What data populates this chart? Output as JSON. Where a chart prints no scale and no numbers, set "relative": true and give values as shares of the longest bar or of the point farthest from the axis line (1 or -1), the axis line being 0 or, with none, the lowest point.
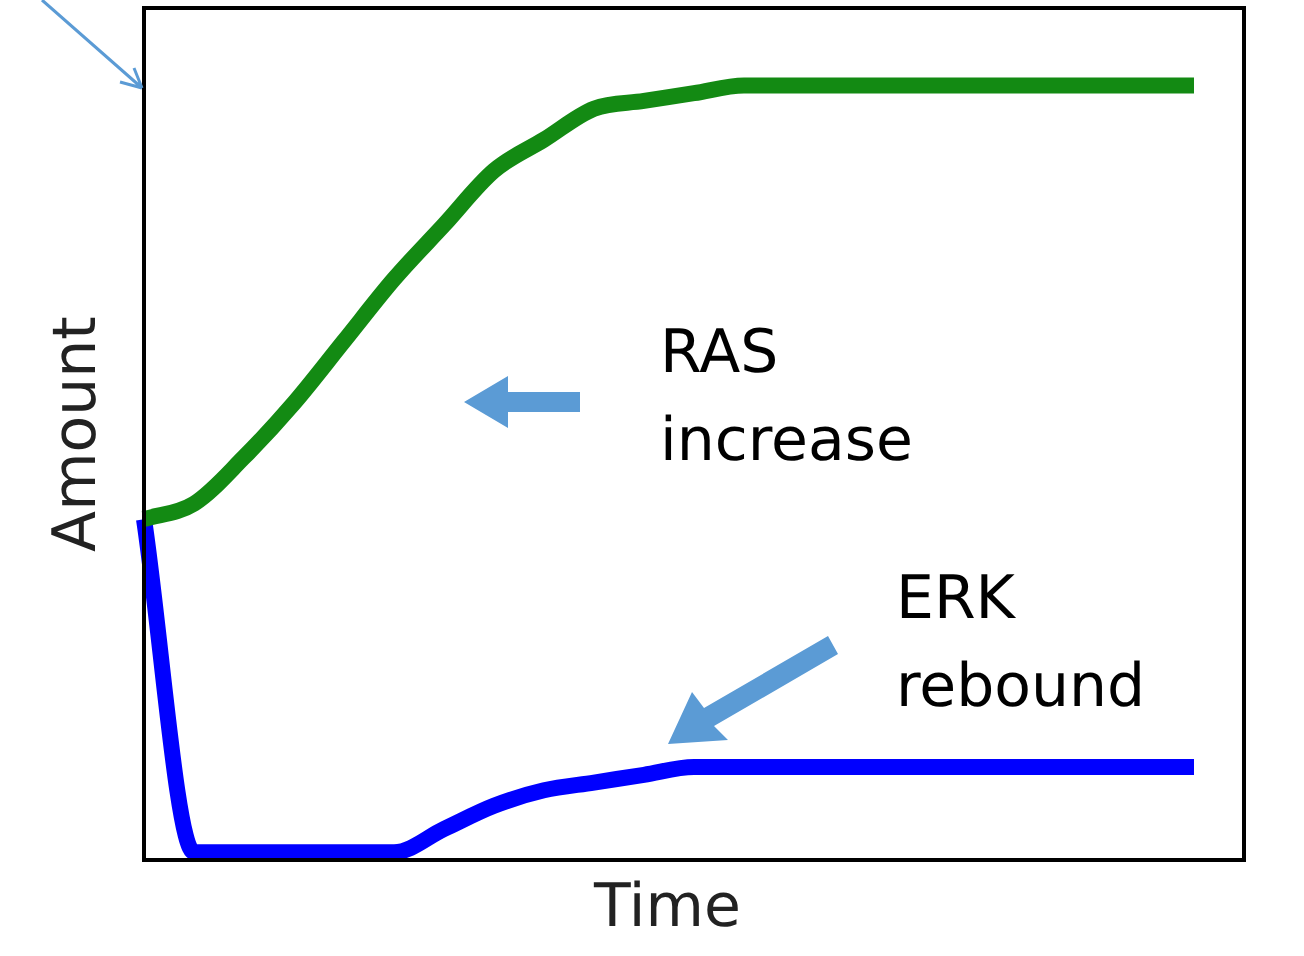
{
  "chart_data": {
    "type": "line",
    "relative": true,
    "xlabel": "Time",
    "ylabel": "Amount",
    "categories": [
      null,
      null,
      null,
      null,
      null,
      null,
      null,
      null,
      null,
      null,
      null,
      null,
      null,
      null,
      null,
      null,
      null,
      null,
      null,
      null,
      null,
      null,
      null
    ],
    "series": [
      {
        "color": "#138a13",
        "values": [
          0.44,
          0.46,
          0.52,
          0.59,
          0.67,
          0.75,
          0.82,
          0.89,
          0.93,
          0.97,
          0.98,
          0.99,
          1,
          1,
          1,
          1,
          1,
          1,
          1,
          1,
          1,
          1,
          null
        ]
      },
      {
        "color": "#0000ff",
        "values": [
          0.44,
          0.01,
          0.01,
          0.01,
          0.01,
          0.01,
          0.04,
          0.07,
          0.09,
          0.1,
          0.11,
          0.12,
          0.12,
          0.12,
          0.12,
          0.12,
          0.12,
          0.12,
          0.12,
          0.12,
          0.12,
          0.12,
          null
        ]
      }
    ],
    "annotations": [
      "RAS increase",
      "ERK rebound"
    ],
    "legend": false,
    "marker": "none",
    "line_style": "solid"
  }
}
